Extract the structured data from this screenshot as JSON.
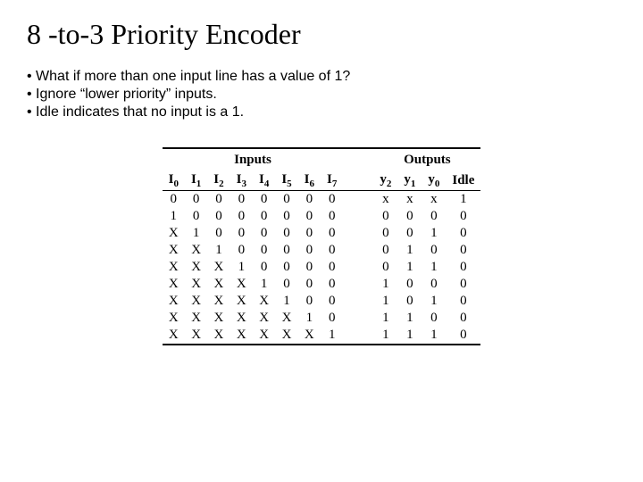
{
  "title": "8 -to-3  Priority Encoder",
  "bullets": [
    "• What if more than one input line has a value of  1?",
    "• Ignore “lower priority” inputs.",
    "• Idle indicates that no input is a 1."
  ],
  "sections": {
    "inputs": "Inputs",
    "outputs": "Outputs"
  },
  "input_cols": [
    [
      "I",
      "0"
    ],
    [
      "I",
      "1"
    ],
    [
      "I",
      "2"
    ],
    [
      "I",
      "3"
    ],
    [
      "I",
      "4"
    ],
    [
      "I",
      "5"
    ],
    [
      "I",
      "6"
    ],
    [
      "I",
      "7"
    ]
  ],
  "output_cols": [
    [
      "y",
      "2"
    ],
    [
      "y",
      "1"
    ],
    [
      "y",
      "0"
    ],
    [
      "Idle",
      ""
    ]
  ],
  "rows": [
    {
      "in": [
        "0",
        "0",
        "0",
        "0",
        "0",
        "0",
        "0",
        "0"
      ],
      "out": [
        "x",
        "x",
        "x",
        "1"
      ]
    },
    {
      "in": [
        "1",
        "0",
        "0",
        "0",
        "0",
        "0",
        "0",
        "0"
      ],
      "out": [
        "0",
        "0",
        "0",
        "0"
      ]
    },
    {
      "in": [
        "X",
        "1",
        "0",
        "0",
        "0",
        "0",
        "0",
        "0"
      ],
      "out": [
        "0",
        "0",
        "1",
        "0"
      ]
    },
    {
      "in": [
        "X",
        "X",
        "1",
        "0",
        "0",
        "0",
        "0",
        "0"
      ],
      "out": [
        "0",
        "1",
        "0",
        "0"
      ]
    },
    {
      "in": [
        "X",
        "X",
        "X",
        "1",
        "0",
        "0",
        "0",
        "0"
      ],
      "out": [
        "0",
        "1",
        "1",
        "0"
      ]
    },
    {
      "in": [
        "X",
        "X",
        "X",
        "X",
        "1",
        "0",
        "0",
        "0"
      ],
      "out": [
        "1",
        "0",
        "0",
        "0"
      ]
    },
    {
      "in": [
        "X",
        "X",
        "X",
        "X",
        "X",
        "1",
        "0",
        "0"
      ],
      "out": [
        "1",
        "0",
        "1",
        "0"
      ]
    },
    {
      "in": [
        "X",
        "X",
        "X",
        "X",
        "X",
        "X",
        "1",
        "0"
      ],
      "out": [
        "1",
        "1",
        "0",
        "0"
      ]
    },
    {
      "in": [
        "X",
        "X",
        "X",
        "X",
        "X",
        "X",
        "X",
        "1"
      ],
      "out": [
        "1",
        "1",
        "1",
        "0"
      ]
    }
  ]
}
